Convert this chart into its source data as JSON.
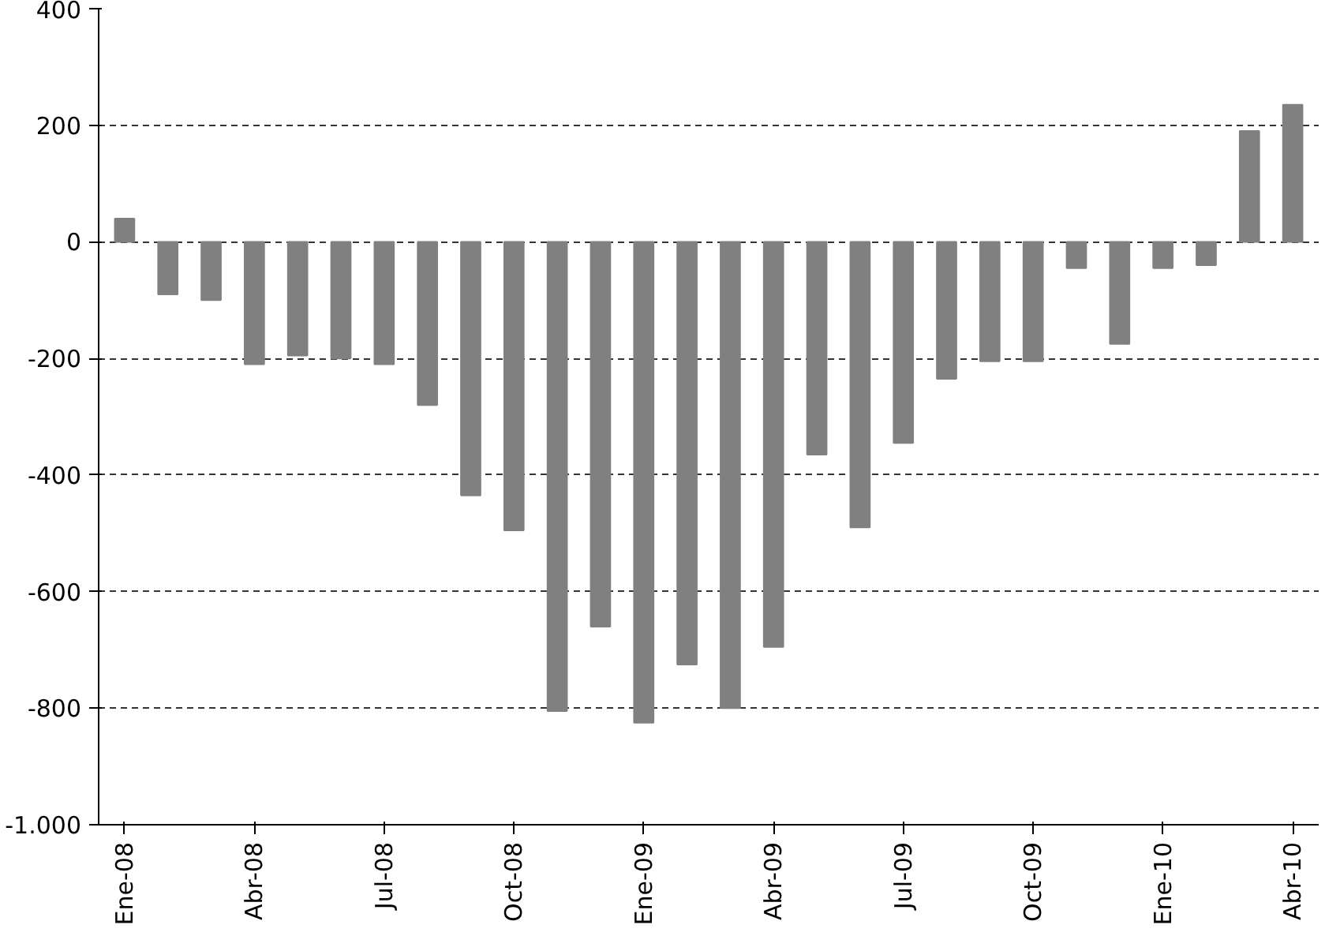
{
  "chart_data": {
    "type": "bar",
    "categories": [
      "Ene-08",
      null,
      null,
      "Abr-08",
      null,
      null,
      "Jul-08",
      null,
      null,
      "Oct-08",
      null,
      null,
      "Ene-09",
      null,
      null,
      "Abr-09",
      null,
      null,
      "Jul-09",
      null,
      null,
      "Oct-09",
      null,
      null,
      "Ene-10",
      null,
      null,
      "Abr-10"
    ],
    "values": [
      40,
      -90,
      -100,
      -210,
      -195,
      -200,
      -210,
      -280,
      -435,
      -495,
      -805,
      -660,
      -825,
      -725,
      -800,
      -695,
      -365,
      -490,
      -345,
      -235,
      -205,
      -205,
      -45,
      -175,
      -45,
      -40,
      190,
      235
    ],
    "color": "#808080",
    "ylim": [
      -1000,
      400
    ],
    "yticks": [
      400,
      200,
      0,
      -200,
      -400,
      -600,
      -800,
      {
        "value": -1000,
        "label": "-1.000"
      }
    ],
    "grid": "y"
  }
}
